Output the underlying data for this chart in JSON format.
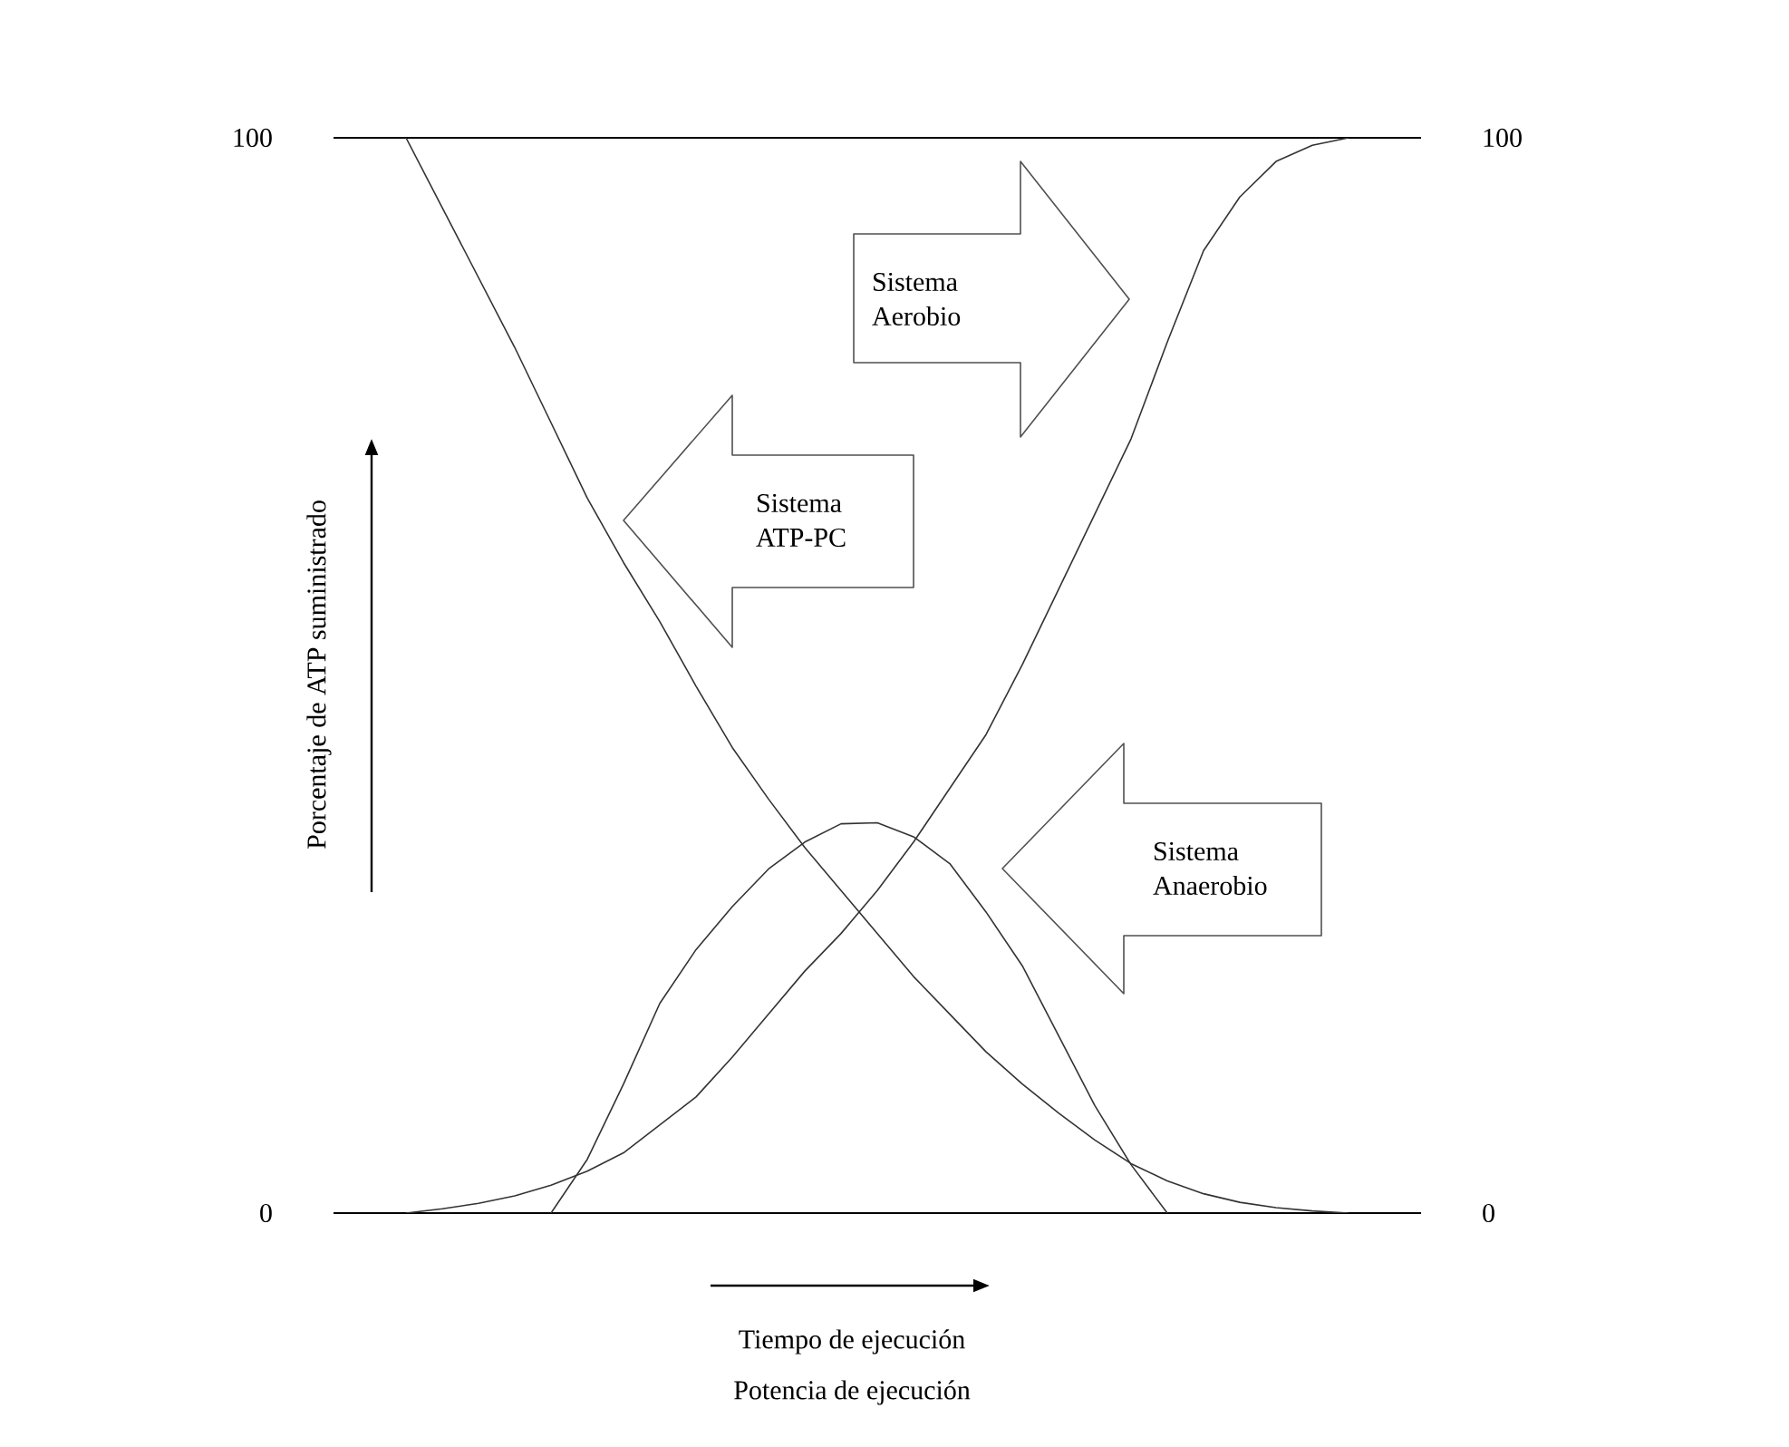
{
  "chart_data": {
    "type": "line",
    "xlabel": "Tiempo de ejecución",
    "ylabel": "Porcentaje de ATP suministrado",
    "annotations": [
      "Potencia de ejecución",
      "Sistema Aerobio",
      "Sistema ATP-PC",
      "Sistema Anaerobio"
    ],
    "categories": [
      null,
      null,
      null,
      null,
      null,
      null,
      null,
      null,
      null,
      null,
      null,
      null,
      null,
      null,
      null,
      null,
      null,
      null,
      null,
      null,
      null,
      null,
      null,
      null,
      null,
      null,
      null,
      null,
      null,
      null,
      null
    ],
    "series": [
      {
        "color": "#333333",
        "values": [
          null,
          null,
          0,
          0.4,
          0.9,
          1.6,
          2.6,
          3.9,
          5.6,
          8.2,
          10.8,
          14.5,
          18.5,
          22.5,
          26,
          30,
          34.5,
          39.5,
          44.5,
          51,
          58,
          65,
          72,
          81,
          89.5,
          94.5,
          97.8,
          99.3,
          100,
          null,
          null
        ]
      },
      {
        "color": "#333333",
        "values": [
          null,
          null,
          100,
          93.5,
          87,
          80.5,
          73.5,
          66.5,
          60.5,
          55,
          49,
          43.3,
          38.5,
          34,
          30,
          26,
          22,
          18.5,
          15,
          12,
          9.3,
          6.8,
          4.6,
          3,
          1.8,
          1,
          0.5,
          0.2,
          0,
          null,
          null
        ]
      },
      {
        "color": "#333333",
        "values": [
          null,
          null,
          null,
          null,
          null,
          null,
          0,
          5,
          12,
          19.5,
          24.5,
          28.5,
          32,
          34.5,
          36.2,
          36.3,
          35,
          32.5,
          28,
          23,
          16.5,
          10,
          4.5,
          0,
          null,
          null,
          null,
          null,
          null,
          null,
          null
        ]
      }
    ],
    "ylim": [
      0,
      100
    ],
    "yticks": [
      0,
      100
    ],
    "y2lim": [
      0,
      100
    ],
    "y2ticks": [
      0,
      100
    ],
    "grid": false,
    "marker": "none"
  }
}
